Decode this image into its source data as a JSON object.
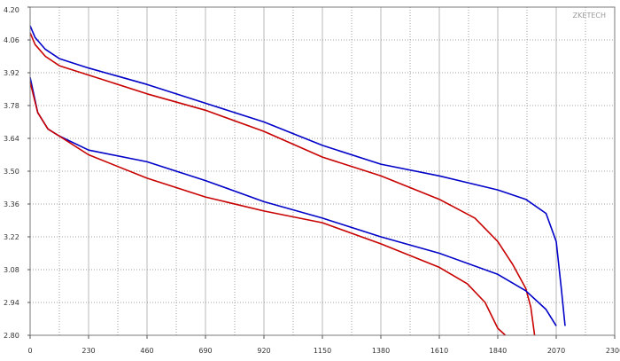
{
  "watermark": "ZKETECH",
  "chart_data": {
    "type": "line",
    "title": "",
    "xlabel": "",
    "ylabel": "",
    "xlim": [
      0,
      2300
    ],
    "ylim": [
      2.8,
      4.2
    ],
    "xticks": [
      0,
      230,
      460,
      690,
      920,
      1150,
      1380,
      1610,
      1840,
      2070,
      2300
    ],
    "xtick_labels": [
      "0",
      "230",
      "460",
      "690",
      "920",
      "1150",
      "1380",
      "1610",
      "1840",
      "2070",
      "2300"
    ],
    "yticks": [
      2.8,
      2.94,
      3.08,
      3.22,
      3.36,
      3.5,
      3.64,
      3.78,
      3.92,
      4.06,
      4.2
    ],
    "ytick_labels": [
      "2.80",
      "2.94",
      "3.08",
      "3.22",
      "3.36",
      "3.50",
      "3.64",
      "3.78",
      "3.92",
      "4.06",
      "4.20"
    ],
    "grid": true,
    "legend": "none",
    "series": [
      {
        "color": "#0000c8",
        "points": [
          [
            0,
            4.12
          ],
          [
            20,
            4.07
          ],
          [
            60,
            4.02
          ],
          [
            115,
            3.98
          ],
          [
            230,
            3.94
          ],
          [
            460,
            3.87
          ],
          [
            690,
            3.79
          ],
          [
            920,
            3.71
          ],
          [
            1150,
            3.61
          ],
          [
            1380,
            3.53
          ],
          [
            1610,
            3.48
          ],
          [
            1840,
            3.42
          ],
          [
            1950,
            3.38
          ],
          [
            2030,
            3.32
          ],
          [
            2070,
            3.2
          ],
          [
            2090,
            3.0
          ],
          [
            2105,
            2.84
          ]
        ]
      },
      {
        "color": "#c80000",
        "points": [
          [
            0,
            4.09
          ],
          [
            20,
            4.04
          ],
          [
            60,
            3.99
          ],
          [
            115,
            3.95
          ],
          [
            230,
            3.91
          ],
          [
            460,
            3.83
          ],
          [
            690,
            3.76
          ],
          [
            920,
            3.67
          ],
          [
            1150,
            3.56
          ],
          [
            1380,
            3.48
          ],
          [
            1610,
            3.38
          ],
          [
            1750,
            3.3
          ],
          [
            1840,
            3.2
          ],
          [
            1900,
            3.1
          ],
          [
            1950,
            3.0
          ],
          [
            1970,
            2.92
          ],
          [
            1985,
            2.8
          ]
        ]
      },
      {
        "color": "#0000c8",
        "points": [
          [
            0,
            3.9
          ],
          [
            30,
            3.75
          ],
          [
            70,
            3.68
          ],
          [
            115,
            3.65
          ],
          [
            230,
            3.59
          ],
          [
            460,
            3.54
          ],
          [
            690,
            3.46
          ],
          [
            920,
            3.37
          ],
          [
            1150,
            3.3
          ],
          [
            1380,
            3.22
          ],
          [
            1610,
            3.15
          ],
          [
            1840,
            3.06
          ],
          [
            1950,
            2.99
          ],
          [
            2030,
            2.91
          ],
          [
            2070,
            2.84
          ]
        ]
      },
      {
        "color": "#c80000",
        "points": [
          [
            0,
            3.88
          ],
          [
            30,
            3.75
          ],
          [
            70,
            3.68
          ],
          [
            115,
            3.65
          ],
          [
            230,
            3.57
          ],
          [
            460,
            3.47
          ],
          [
            690,
            3.39
          ],
          [
            920,
            3.33
          ],
          [
            1150,
            3.28
          ],
          [
            1380,
            3.19
          ],
          [
            1610,
            3.09
          ],
          [
            1720,
            3.02
          ],
          [
            1790,
            2.94
          ],
          [
            1840,
            2.83
          ],
          [
            1870,
            2.8
          ]
        ]
      }
    ]
  }
}
